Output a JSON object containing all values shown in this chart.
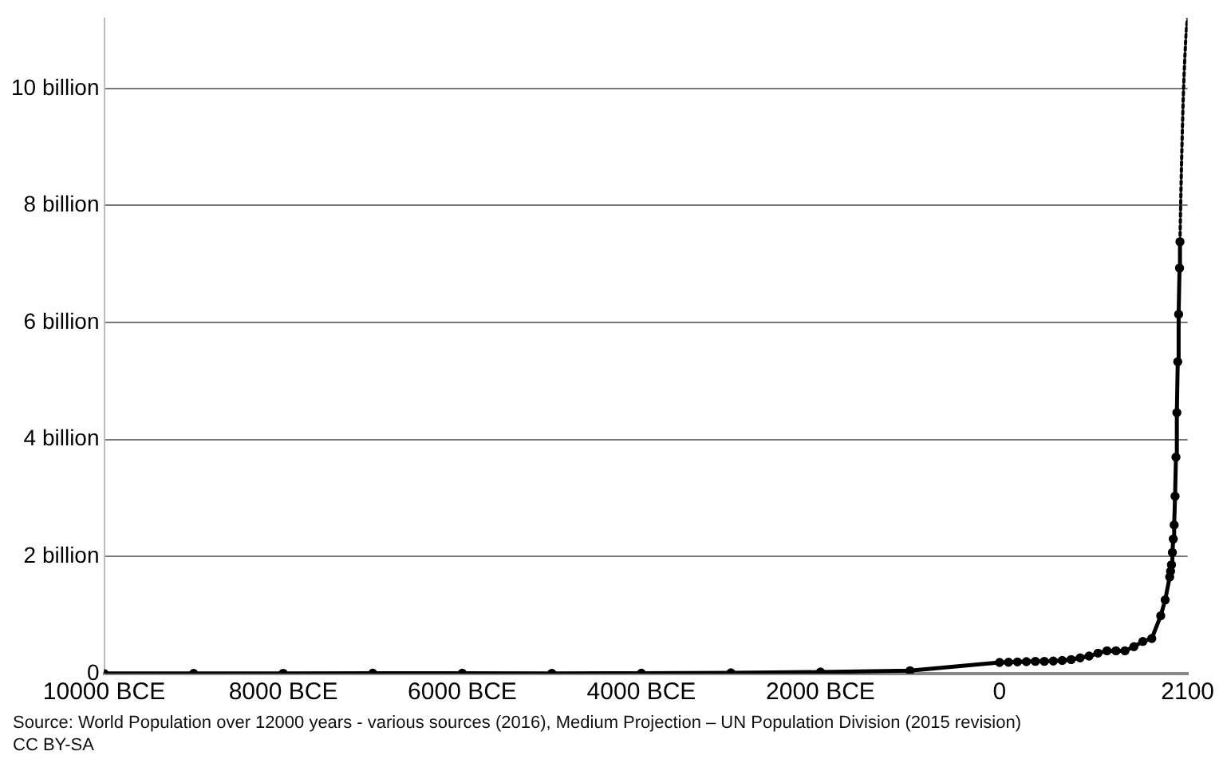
{
  "chart_data": {
    "type": "line",
    "xlim": [
      -10000,
      2100
    ],
    "xticks": [
      {
        "value": -10000,
        "label": "10000 BCE"
      },
      {
        "value": -8000,
        "label": "8000 BCE"
      },
      {
        "value": -6000,
        "label": "6000 BCE"
      },
      {
        "value": -4000,
        "label": "4000 BCE"
      },
      {
        "value": -2000,
        "label": "2000 BCE"
      },
      0,
      2100
    ],
    "yticks": [
      0,
      {
        "value": 2000000000,
        "label": "2 billion"
      },
      {
        "value": 4000000000,
        "label": "4 billion"
      },
      {
        "value": 6000000000,
        "label": "6 billion"
      },
      {
        "value": 8000000000,
        "label": "8 billion"
      },
      {
        "value": 10000000000,
        "label": "10 billion"
      }
    ],
    "ylim": [
      0,
      11200000000
    ],
    "grid": "y",
    "legend": false,
    "series": [
      {
        "color": "#000000",
        "marker": "circle",
        "line_style": "solid",
        "x": [
          -10000,
          -9000,
          -8000,
          -7000,
          -6000,
          -5000,
          -4000,
          -3000,
          -2000,
          -1000,
          0,
          100,
          200,
          300,
          400,
          500,
          600,
          700,
          800,
          900,
          1000,
          1100,
          1200,
          1300,
          1400,
          1500,
          1600,
          1700,
          1800,
          1850,
          1900,
          1910,
          1920,
          1930,
          1940,
          1950,
          1960,
          1970,
          1980,
          1990,
          2000,
          2010,
          2015
        ],
        "values": [
          2000000,
          4000000,
          5000000,
          7000000,
          7000000,
          5000000,
          7000000,
          14000000,
          27000000,
          50000000,
          190000000,
          195000000,
          200000000,
          205000000,
          210000000,
          210000000,
          215000000,
          225000000,
          240000000,
          270000000,
          300000000,
          350000000,
          390000000,
          390000000,
          390000000,
          460000000,
          550000000,
          600000000,
          990000000,
          1260000000,
          1650000000,
          1750000000,
          1860000000,
          2070000000,
          2300000000,
          2540000000,
          3030000000,
          3700000000,
          4460000000,
          5330000000,
          6140000000,
          6930000000,
          7380000000
        ]
      },
      {
        "color": "#000000",
        "marker": "none",
        "line_style": "dotted",
        "x": [
          2015,
          2020,
          2030,
          2040,
          2050,
          2060,
          2070,
          2080,
          2090,
          2100
        ],
        "values": [
          7380000000,
          7800000000,
          8550000000,
          9200000000,
          9770000000,
          10200000000,
          10550000000,
          10850000000,
          11070000000,
          11200000000
        ]
      }
    ],
    "annotations": [
      "Source: World Population over 12000 years - various sources (2016), Medium Projection – UN Population Division (2015 revision)",
      "CC BY-SA"
    ]
  }
}
